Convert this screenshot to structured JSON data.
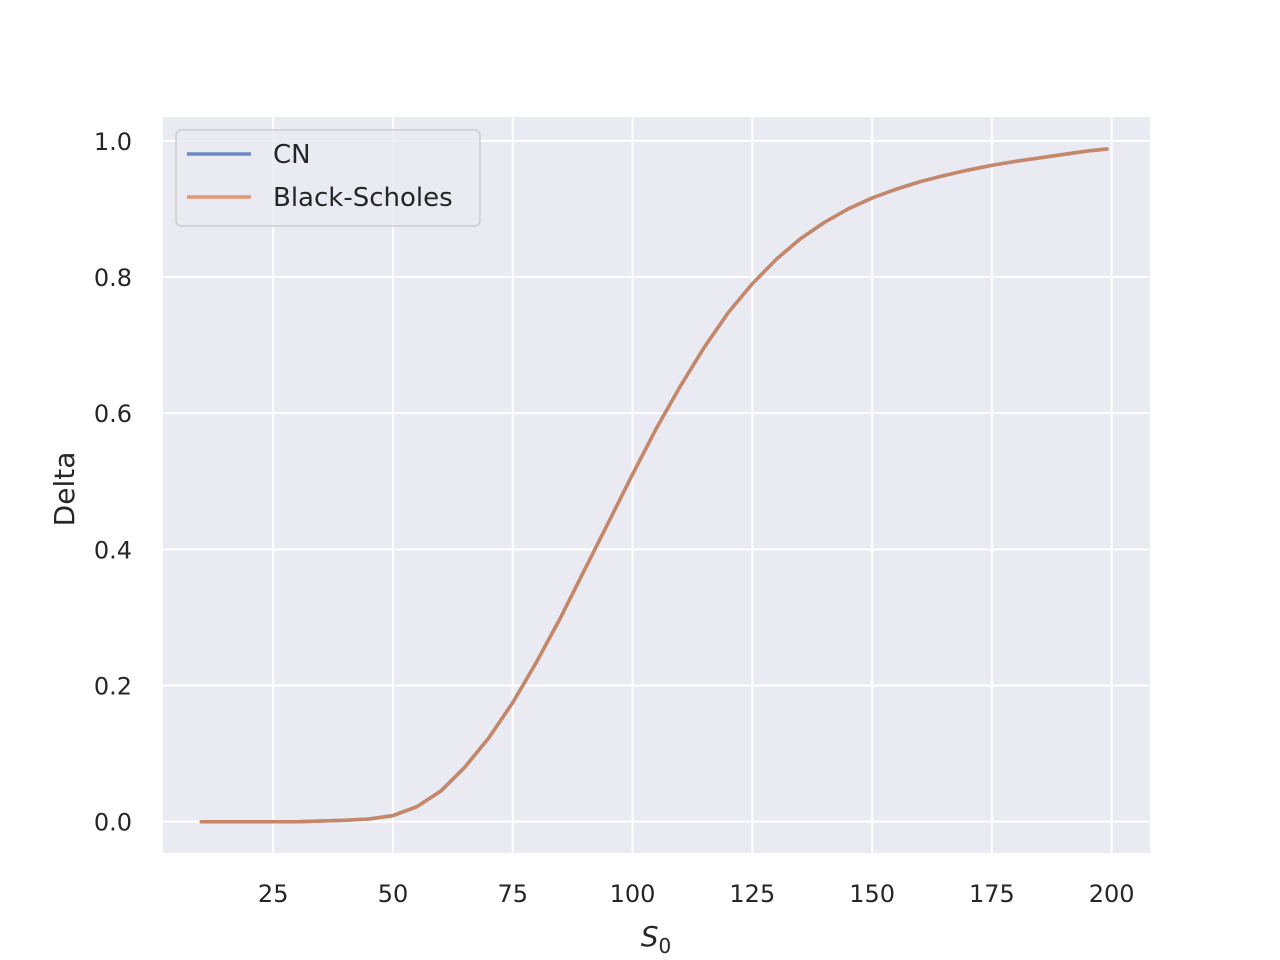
{
  "chart_data": {
    "type": "line",
    "title": "",
    "xlabel": "S",
    "xlabel_sub": "0",
    "ylabel": "Delta",
    "xlim": [
      2,
      208
    ],
    "ylim": [
      -0.046,
      1.035
    ],
    "xticks": [
      25,
      50,
      75,
      100,
      125,
      150,
      175,
      200
    ],
    "yticks": [
      0.0,
      0.2,
      0.4,
      0.6,
      0.8,
      1.0
    ],
    "xtick_labels": [
      "25",
      "50",
      "75",
      "100",
      "125",
      "150",
      "175",
      "200"
    ],
    "ytick_labels": [
      "0.0",
      "0.2",
      "0.4",
      "0.6",
      "0.8",
      "1.0"
    ],
    "grid": true,
    "legend_position": "top-left",
    "x": [
      10,
      20,
      30,
      40,
      45,
      50,
      55,
      60,
      65,
      70,
      75,
      80,
      85,
      90,
      95,
      100,
      105,
      110,
      115,
      120,
      125,
      130,
      135,
      140,
      145,
      150,
      155,
      160,
      165,
      170,
      175,
      180,
      185,
      190,
      195,
      199
    ],
    "series": [
      {
        "name": "CN",
        "color": "#4c72b0",
        "values": [
          0.0,
          0.0,
          0.0,
          0.002,
          0.004,
          0.009,
          0.022,
          0.045,
          0.08,
          0.123,
          0.175,
          0.235,
          0.3,
          0.37,
          0.44,
          0.51,
          0.578,
          0.64,
          0.697,
          0.748,
          0.79,
          0.826,
          0.856,
          0.88,
          0.9,
          0.916,
          0.929,
          0.94,
          0.949,
          0.957,
          0.964,
          0.97,
          0.975,
          0.98,
          0.985,
          0.988
        ]
      },
      {
        "name": "Black-Scholes",
        "color": "#dd8452",
        "values": [
          0.0,
          0.0,
          0.0,
          0.002,
          0.004,
          0.009,
          0.022,
          0.045,
          0.08,
          0.123,
          0.175,
          0.235,
          0.3,
          0.37,
          0.44,
          0.51,
          0.578,
          0.64,
          0.697,
          0.748,
          0.79,
          0.826,
          0.856,
          0.88,
          0.9,
          0.916,
          0.929,
          0.94,
          0.949,
          0.957,
          0.964,
          0.97,
          0.975,
          0.98,
          0.985,
          0.988
        ]
      }
    ],
    "background_color": "#eaeaf2",
    "grid_color": "#ffffff"
  }
}
